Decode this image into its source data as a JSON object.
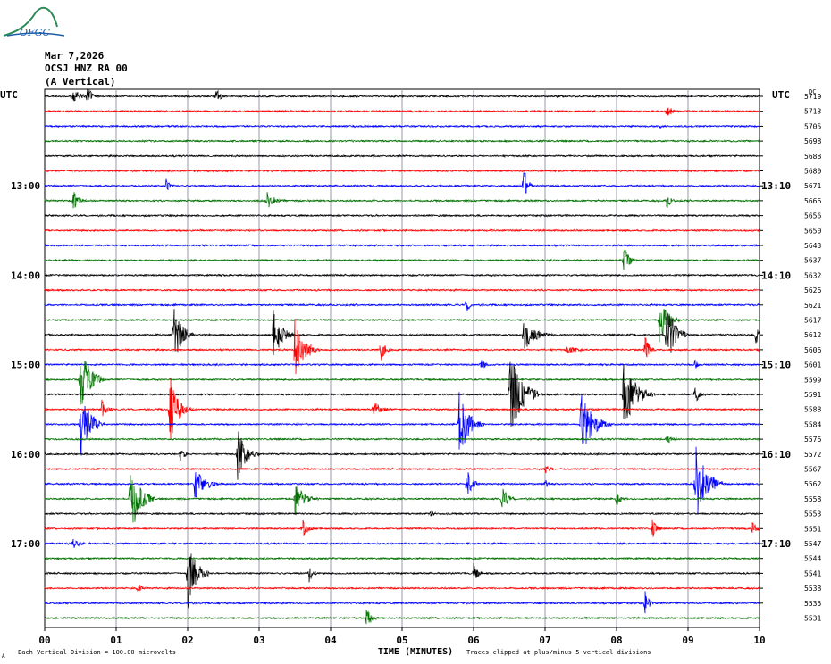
{
  "logo_text": "OFGC",
  "header": {
    "date": "Mar 7,2026",
    "station": "OCSJ HNZ RA 00",
    "component": "(A Vertical)"
  },
  "axes": {
    "left_title": "UTC",
    "right_title": "UTC",
    "right_top_label": "DC",
    "xlabel": "TIME (MINUTES)",
    "footer_left": "Each Vertical Division =  100.00 microvolts",
    "footer_right": "Traces clipped at plus/minus 5 vertical divisions",
    "footer_mark": "A"
  },
  "colors": {
    "black": "#000000",
    "red": "#ff0000",
    "blue": "#0000ff",
    "green": "#007000",
    "grid": "#9a9aa8"
  },
  "chart_data": {
    "type": "line",
    "x_ticks": [
      "00",
      "01",
      "02",
      "03",
      "04",
      "05",
      "06",
      "07",
      "08",
      "09",
      "10"
    ],
    "xlim": [
      0,
      10
    ],
    "left_time_labels": [
      "13:00",
      "14:00",
      "15:00",
      "16:00",
      "17:00"
    ],
    "right_time_labels": [
      "13:10",
      "14:10",
      "15:10",
      "16:10",
      "17:10"
    ],
    "trace_colors": [
      "black",
      "red",
      "blue",
      "green"
    ],
    "dc_offsets": [
      "5719",
      "5713",
      "5705",
      "5698",
      "5688",
      "5680",
      "5671",
      "5666",
      "5656",
      "5650",
      "5643",
      "5637",
      "5632",
      "5626",
      "5621",
      "5617",
      "5612",
      "5606",
      "5601",
      "5599",
      "5591",
      "5588",
      "5584",
      "5576",
      "5572",
      "5567",
      "5562",
      "5558",
      "5553",
      "5551",
      "5547",
      "5544",
      "5541",
      "5538",
      "5535",
      "5531"
    ],
    "events": [
      {
        "trace": 0,
        "minute": 0.4,
        "amp": 10,
        "dur": 0.25
      },
      {
        "trace": 0,
        "minute": 0.6,
        "amp": 14,
        "dur": 0.15
      },
      {
        "trace": 0,
        "minute": 2.4,
        "amp": 10,
        "dur": 0.15
      },
      {
        "trace": 1,
        "minute": 8.7,
        "amp": 10,
        "dur": 0.2
      },
      {
        "trace": 2,
        "minute": 8.6,
        "amp": 3,
        "dur": 0.1
      },
      {
        "trace": 6,
        "minute": 1.7,
        "amp": 8,
        "dur": 0.15
      },
      {
        "trace": 6,
        "minute": 6.7,
        "amp": 22,
        "dur": 0.15
      },
      {
        "trace": 7,
        "minute": 0.4,
        "amp": 12,
        "dur": 0.2
      },
      {
        "trace": 7,
        "minute": 3.1,
        "amp": 12,
        "dur": 0.3
      },
      {
        "trace": 7,
        "minute": 8.7,
        "amp": 10,
        "dur": 0.15
      },
      {
        "trace": 11,
        "minute": 8.1,
        "amp": 18,
        "dur": 0.2
      },
      {
        "trace": 14,
        "minute": 5.9,
        "amp": 14,
        "dur": 0.1
      },
      {
        "trace": 15,
        "minute": 8.6,
        "amp": 30,
        "dur": 0.3
      },
      {
        "trace": 16,
        "minute": 1.8,
        "amp": 36,
        "dur": 0.3
      },
      {
        "trace": 16,
        "minute": 3.2,
        "amp": 30,
        "dur": 0.3
      },
      {
        "trace": 16,
        "minute": 6.7,
        "amp": 20,
        "dur": 0.4
      },
      {
        "trace": 16,
        "minute": 8.7,
        "amp": 40,
        "dur": 0.3
      },
      {
        "trace": 16,
        "minute": 9.95,
        "amp": 12,
        "dur": 0.1
      },
      {
        "trace": 17,
        "minute": 3.5,
        "amp": 40,
        "dur": 0.35
      },
      {
        "trace": 17,
        "minute": 4.7,
        "amp": 16,
        "dur": 0.15
      },
      {
        "trace": 17,
        "minute": 7.3,
        "amp": 5,
        "dur": 0.5
      },
      {
        "trace": 17,
        "minute": 8.4,
        "amp": 18,
        "dur": 0.15
      },
      {
        "trace": 18,
        "minute": 6.1,
        "amp": 10,
        "dur": 0.15
      },
      {
        "trace": 18,
        "minute": 9.1,
        "amp": 10,
        "dur": 0.1
      },
      {
        "trace": 19,
        "minute": 0.5,
        "amp": 40,
        "dur": 0.35
      },
      {
        "trace": 20,
        "minute": 6.5,
        "amp": 50,
        "dur": 0.45
      },
      {
        "trace": 20,
        "minute": 8.1,
        "amp": 40,
        "dur": 0.45
      },
      {
        "trace": 20,
        "minute": 9.1,
        "amp": 12,
        "dur": 0.15
      },
      {
        "trace": 21,
        "minute": 0.8,
        "amp": 12,
        "dur": 0.2
      },
      {
        "trace": 21,
        "minute": 1.75,
        "amp": 40,
        "dur": 0.3
      },
      {
        "trace": 21,
        "minute": 4.6,
        "amp": 10,
        "dur": 0.3
      },
      {
        "trace": 22,
        "minute": 0.5,
        "amp": 40,
        "dur": 0.35
      },
      {
        "trace": 22,
        "minute": 5.8,
        "amp": 40,
        "dur": 0.35
      },
      {
        "trace": 22,
        "minute": 7.5,
        "amp": 36,
        "dur": 0.45
      },
      {
        "trace": 23,
        "minute": 8.7,
        "amp": 6,
        "dur": 0.2
      },
      {
        "trace": 24,
        "minute": 2.7,
        "amp": 30,
        "dur": 0.3
      },
      {
        "trace": 24,
        "minute": 1.9,
        "amp": 8,
        "dur": 0.2
      },
      {
        "trace": 25,
        "minute": 7.0,
        "amp": 6,
        "dur": 0.2
      },
      {
        "trace": 26,
        "minute": 2.1,
        "amp": 20,
        "dur": 0.4
      },
      {
        "trace": 26,
        "minute": 5.9,
        "amp": 20,
        "dur": 0.2
      },
      {
        "trace": 26,
        "minute": 9.1,
        "amp": 50,
        "dur": 0.4
      },
      {
        "trace": 26,
        "minute": 7.0,
        "amp": 6,
        "dur": 0.15
      },
      {
        "trace": 27,
        "minute": 1.2,
        "amp": 44,
        "dur": 0.35
      },
      {
        "trace": 27,
        "minute": 3.5,
        "amp": 20,
        "dur": 0.35
      },
      {
        "trace": 27,
        "minute": 6.4,
        "amp": 16,
        "dur": 0.2
      },
      {
        "trace": 27,
        "minute": 8.0,
        "amp": 10,
        "dur": 0.15
      },
      {
        "trace": 28,
        "minute": 5.4,
        "amp": 4,
        "dur": 0.15
      },
      {
        "trace": 29,
        "minute": 3.6,
        "amp": 12,
        "dur": 0.2
      },
      {
        "trace": 29,
        "minute": 8.5,
        "amp": 12,
        "dur": 0.15
      },
      {
        "trace": 29,
        "minute": 9.9,
        "amp": 10,
        "dur": 0.15
      },
      {
        "trace": 30,
        "minute": 0.4,
        "amp": 8,
        "dur": 0.2
      },
      {
        "trace": 32,
        "minute": 2.0,
        "amp": 44,
        "dur": 0.3
      },
      {
        "trace": 32,
        "minute": 3.7,
        "amp": 10,
        "dur": 0.15
      },
      {
        "trace": 32,
        "minute": 6.0,
        "amp": 12,
        "dur": 0.15
      },
      {
        "trace": 33,
        "minute": 1.3,
        "amp": 6,
        "dur": 0.15
      },
      {
        "trace": 34,
        "minute": 8.4,
        "amp": 14,
        "dur": 0.15
      },
      {
        "trace": 35,
        "minute": 4.5,
        "amp": 12,
        "dur": 0.2
      }
    ]
  }
}
